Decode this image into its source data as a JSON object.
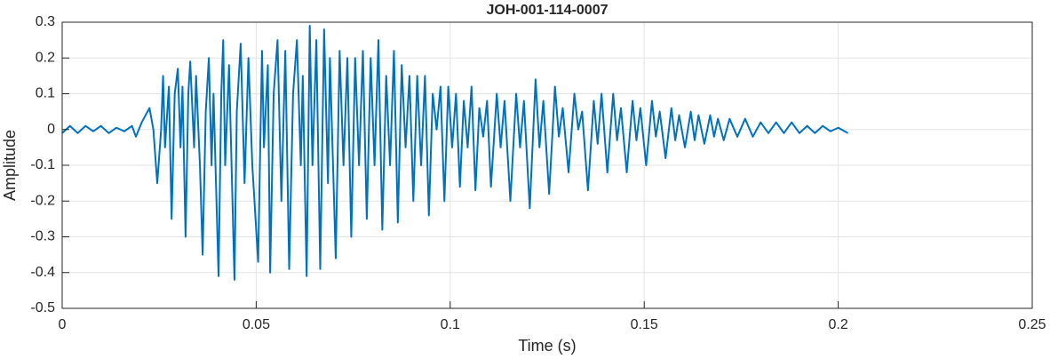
{
  "chart_data": {
    "type": "line",
    "title": "JOH-001-114-0007",
    "xlabel": "Time (s)",
    "ylabel": "Amplitude",
    "xlim": [
      0,
      0.25
    ],
    "xticks": [
      0,
      0.05,
      0.1,
      0.15,
      0.2,
      0.25
    ],
    "ylim": [
      -0.5,
      0.3
    ],
    "yticks": [
      -0.5,
      -0.4,
      -0.3,
      -0.2,
      -0.1,
      0,
      0.1,
      0.2,
      0.3
    ],
    "grid": true,
    "series": [
      {
        "color": "#0072BD",
        "x": [
          0,
          0.002,
          0.004,
          0.006,
          0.008,
          0.01,
          0.012,
          0.014,
          0.016,
          0.018,
          0.019,
          0.0205,
          0.0225,
          0.0235,
          0.0245,
          0.0255,
          0.026,
          0.0265,
          0.0275,
          0.0282,
          0.029,
          0.0298,
          0.0305,
          0.031,
          0.0318,
          0.0325,
          0.033,
          0.034,
          0.0345,
          0.0355,
          0.0362,
          0.037,
          0.0378,
          0.0385,
          0.039,
          0.0403,
          0.041,
          0.0415,
          0.042,
          0.043,
          0.0444,
          0.045,
          0.046,
          0.047,
          0.048,
          0.049,
          0.0505,
          0.0515,
          0.052,
          0.053,
          0.0536,
          0.0545,
          0.0555,
          0.0565,
          0.0575,
          0.0585,
          0.0595,
          0.0605,
          0.0615,
          0.062,
          0.063,
          0.0638,
          0.0645,
          0.0655,
          0.0665,
          0.0675,
          0.0685,
          0.069,
          0.0705,
          0.0715,
          0.0725,
          0.0735,
          0.0745,
          0.0755,
          0.0765,
          0.0775,
          0.0785,
          0.0795,
          0.0805,
          0.0815,
          0.0825,
          0.0835,
          0.0845,
          0.0855,
          0.0865,
          0.0875,
          0.0885,
          0.0895,
          0.0905,
          0.0915,
          0.0925,
          0.0935,
          0.0945,
          0.0955,
          0.0965,
          0.0975,
          0.0985,
          0.0995,
          0.1005,
          0.1015,
          0.1025,
          0.1035,
          0.1045,
          0.1055,
          0.1065,
          0.1075,
          0.1085,
          0.1095,
          0.1105,
          0.112,
          0.113,
          0.114,
          0.1155,
          0.117,
          0.118,
          0.119,
          0.1205,
          0.122,
          0.123,
          0.124,
          0.1255,
          0.127,
          0.128,
          0.129,
          0.1305,
          0.132,
          0.133,
          0.134,
          0.1355,
          0.137,
          0.138,
          0.139,
          0.1405,
          0.142,
          0.143,
          0.144,
          0.1455,
          0.147,
          0.148,
          0.149,
          0.1505,
          0.152,
          0.153,
          0.154,
          0.1555,
          0.157,
          0.158,
          0.159,
          0.1605,
          0.162,
          0.163,
          0.164,
          0.1655,
          0.167,
          0.168,
          0.169,
          0.1705,
          0.172,
          0.174,
          0.176,
          0.178,
          0.18,
          0.182,
          0.184,
          0.186,
          0.188,
          0.19,
          0.192,
          0.194,
          0.196,
          0.198,
          0.2,
          0.2025
        ],
        "values": [
          -0.01,
          0.01,
          -0.01,
          0.01,
          -0.005,
          0.01,
          -0.01,
          0.005,
          -0.005,
          0.01,
          -0.02,
          0.02,
          0.06,
          0,
          -0.15,
          0,
          0.15,
          -0.05,
          0.12,
          -0.25,
          0.1,
          0.17,
          -0.05,
          0.12,
          -0.3,
          0.1,
          0.19,
          -0.05,
          0.15,
          -0.1,
          -0.35,
          0.05,
          0.2,
          -0.1,
          0.1,
          -0.41,
          0.1,
          0.25,
          -0.1,
          0.18,
          -0.42,
          0.05,
          0.24,
          -0.15,
          0.2,
          -0.1,
          -0.37,
          0.22,
          -0.05,
          0.18,
          -0.4,
          0.1,
          0.25,
          -0.2,
          0.22,
          -0.39,
          0.1,
          0.25,
          -0.1,
          0.15,
          -0.41,
          0.29,
          -0.1,
          0.25,
          -0.39,
          0.28,
          -0.15,
          0.2,
          -0.36,
          0.22,
          -0.1,
          0.2,
          -0.3,
          0.2,
          -0.1,
          0.22,
          -0.25,
          0.2,
          -0.1,
          0.25,
          -0.28,
          0.15,
          -0.1,
          0.22,
          -0.26,
          0.18,
          -0.05,
          0.15,
          -0.2,
          0.15,
          -0.1,
          0.15,
          -0.24,
          0.1,
          0,
          0.12,
          -0.2,
          0.12,
          -0.05,
          0.1,
          -0.16,
          0.08,
          -0.05,
          0.12,
          -0.17,
          0.06,
          -0.02,
          0.08,
          -0.16,
          0.1,
          -0.05,
          0.08,
          -0.2,
          0.1,
          -0.05,
          0.08,
          -0.22,
          0.14,
          -0.05,
          0.08,
          -0.18,
          0.12,
          -0.02,
          0.06,
          -0.12,
          0.1,
          0,
          0.05,
          -0.17,
          0.08,
          -0.04,
          0.1,
          -0.12,
          0.1,
          -0.03,
          0.06,
          -0.12,
          0.08,
          -0.03,
          0.06,
          -0.1,
          0.08,
          -0.02,
          0.05,
          -0.08,
          0.06,
          -0.03,
          0.04,
          -0.05,
          0.05,
          -0.03,
          0.04,
          -0.04,
          0.04,
          -0.02,
          0.03,
          -0.03,
          0.03,
          -0.02,
          0.03,
          -0.02,
          0.02,
          -0.01,
          0.02,
          -0.01,
          0.02,
          -0.01,
          0.01,
          -0.01,
          0.01,
          -0.005,
          0.005,
          -0.01
        ]
      }
    ]
  }
}
